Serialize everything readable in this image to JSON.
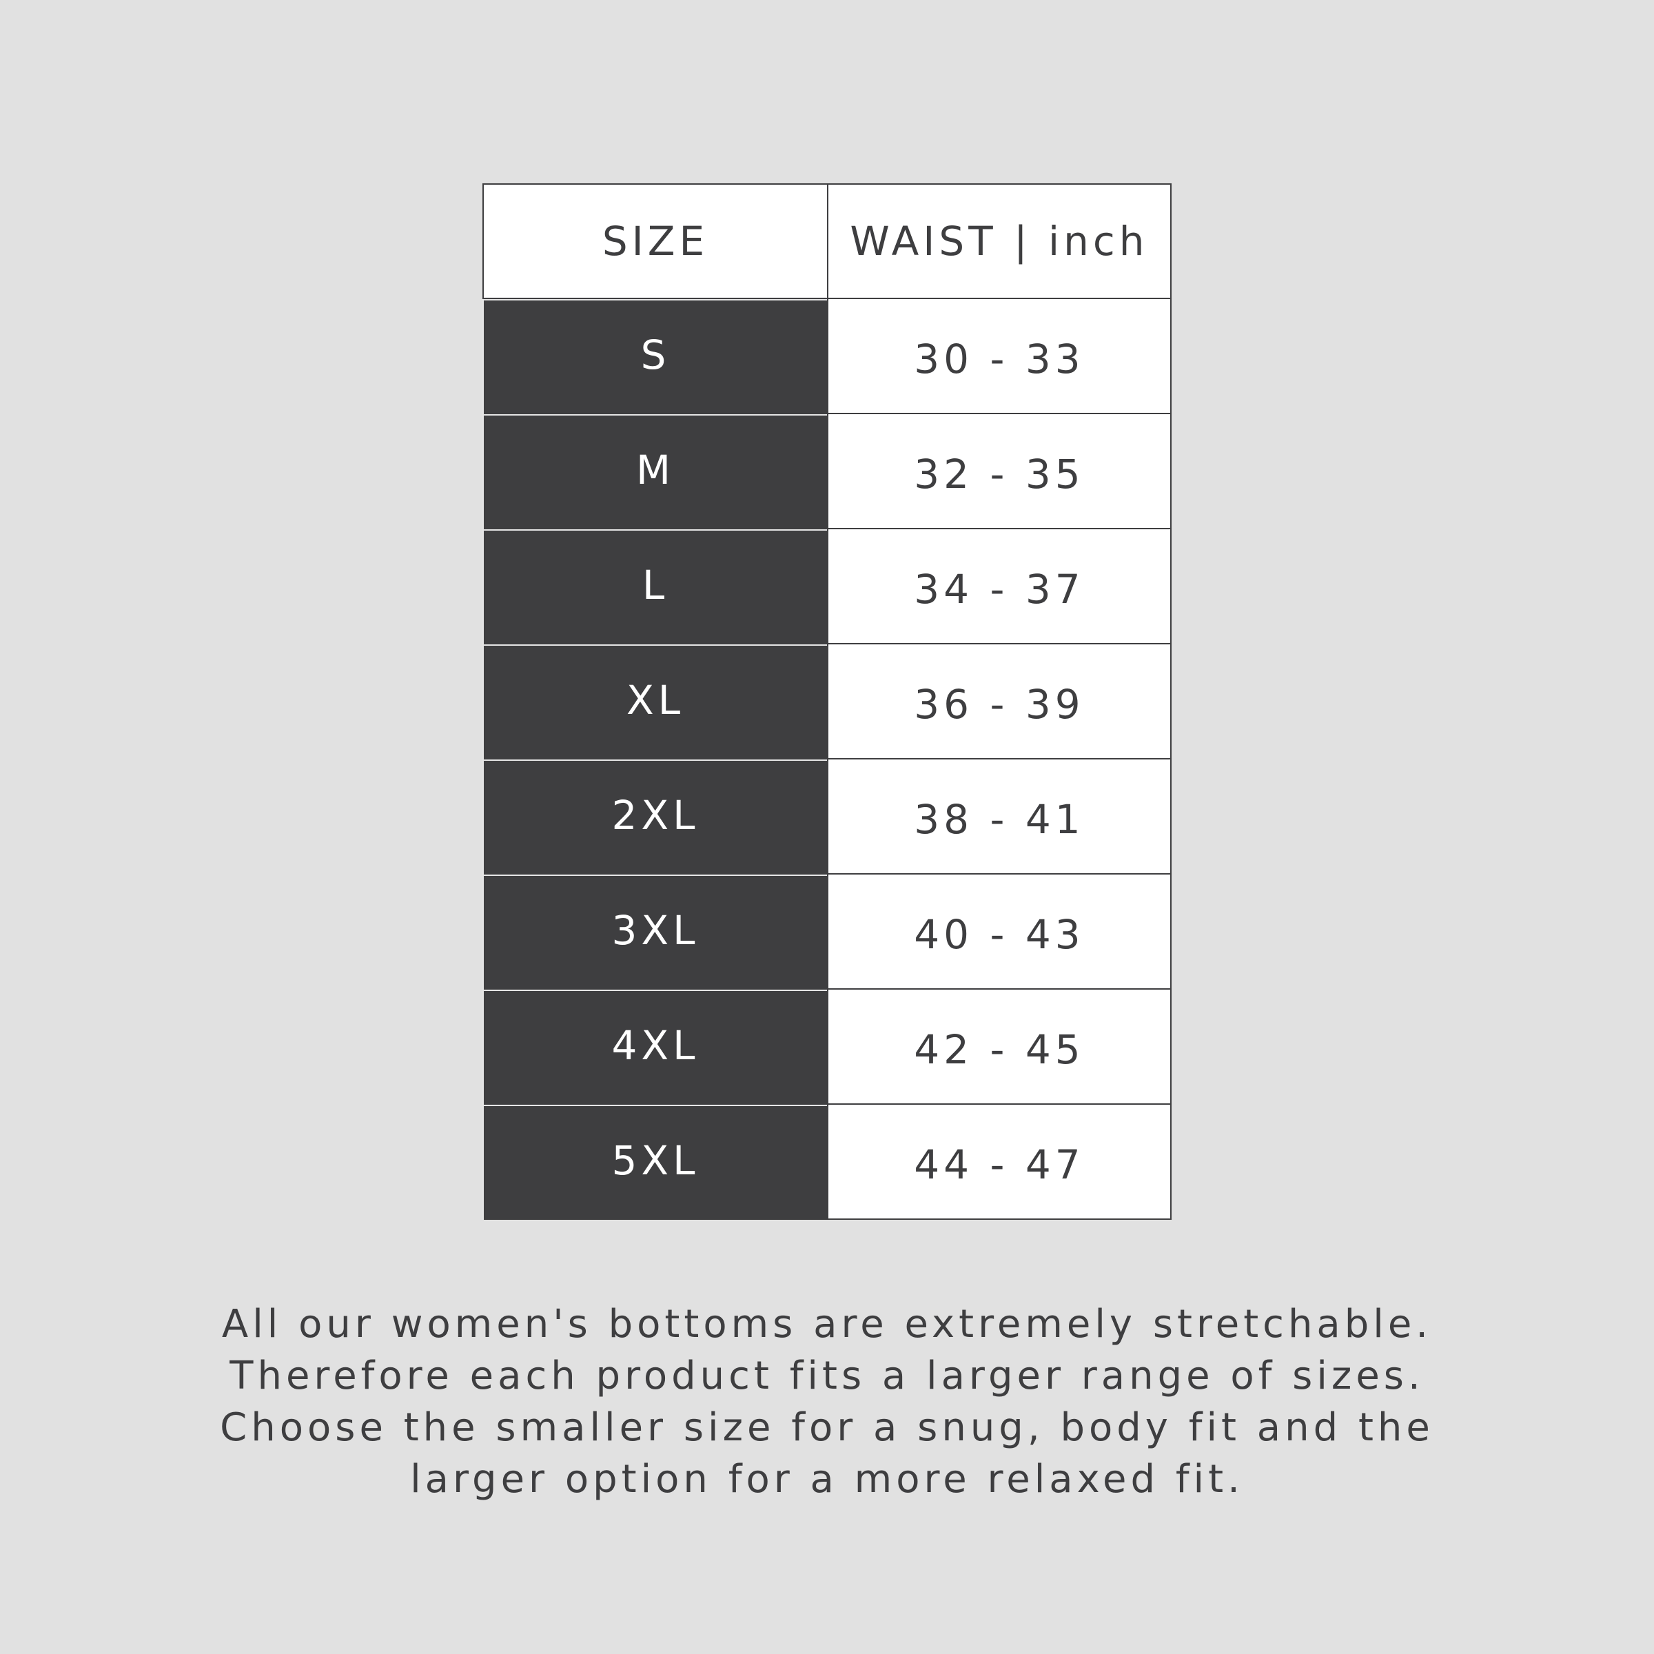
{
  "table": {
    "header": [
      "SIZE",
      "WAIST | inch"
    ],
    "rows": [
      [
        "S",
        "30 - 33"
      ],
      [
        "M",
        "32 - 35"
      ],
      [
        "L",
        "34 - 37"
      ],
      [
        "XL",
        "36 - 39"
      ],
      [
        "2XL",
        "38 - 41"
      ],
      [
        "3XL",
        "40 - 43"
      ],
      [
        "4XL",
        "42 - 45"
      ],
      [
        "5XL",
        "44 - 47"
      ]
    ]
  },
  "note": {
    "lines": [
      "All our women's bottoms are extremely stretchable.",
      "Therefore each product fits a larger range of sizes.",
      "Choose the smaller size for a snug, body fit and the",
      "larger option for a more relaxed fit."
    ]
  }
}
